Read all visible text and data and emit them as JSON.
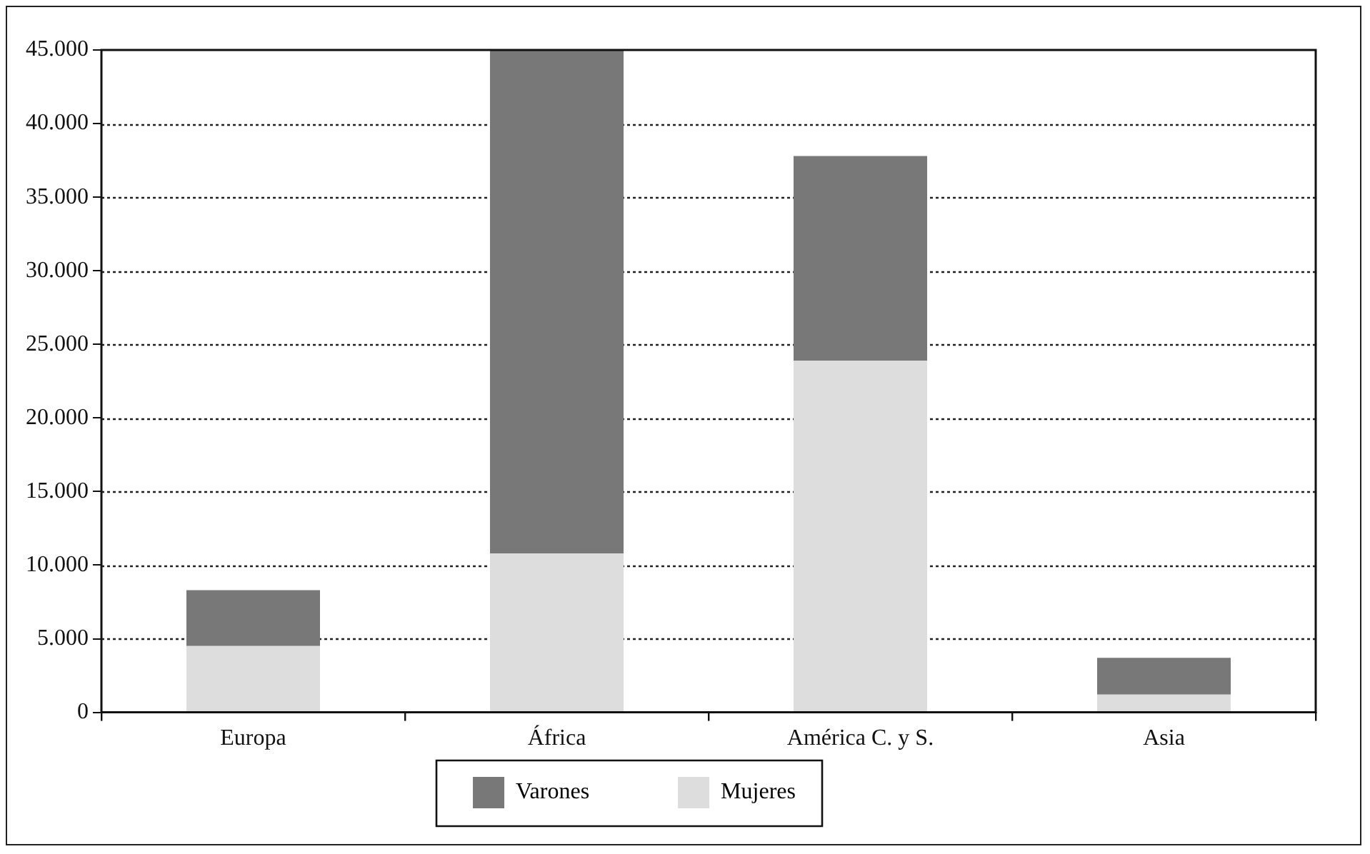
{
  "chart_data": {
    "type": "bar",
    "stacked": true,
    "categories": [
      "Europa",
      "África",
      "América C. y S.",
      "Asia"
    ],
    "series": [
      {
        "name": "Mujeres",
        "color": "#dddddd",
        "values": [
          4500,
          10800,
          23900,
          1200
        ]
      },
      {
        "name": "Varones",
        "color": "#787878",
        "values": [
          3800,
          34200,
          13900,
          2500
        ]
      }
    ],
    "ylim": [
      0,
      45000
    ],
    "yticks": [
      0,
      {
        "value": 5000,
        "label": "5.000"
      },
      {
        "value": 10000,
        "label": "10.000"
      },
      {
        "value": 15000,
        "label": "15.000"
      },
      {
        "value": 20000,
        "label": "20.000"
      },
      {
        "value": 25000,
        "label": "25.000"
      },
      {
        "value": 30000,
        "label": "30.000"
      },
      {
        "value": 35000,
        "label": "35.000"
      },
      {
        "value": 40000,
        "label": "40.000"
      },
      {
        "value": 45000,
        "label": "45.000"
      }
    ],
    "grid": "y",
    "legend": "bottom"
  }
}
